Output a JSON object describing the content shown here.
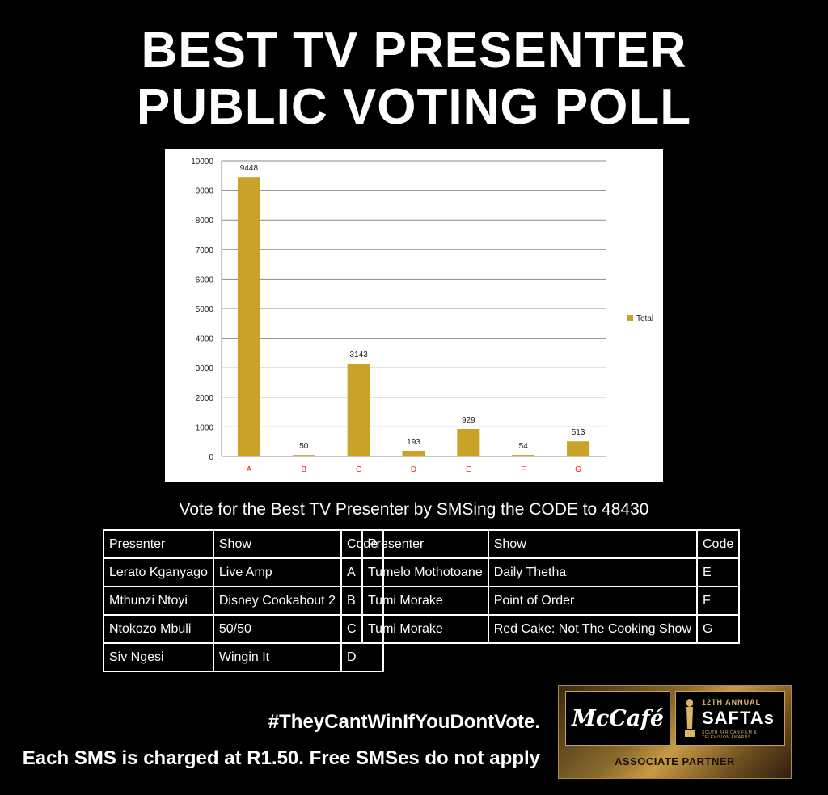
{
  "header": {
    "line1": "BEST TV PRESENTER",
    "line2": "PUBLIC VOTING POLL"
  },
  "chart_data": {
    "type": "bar",
    "categories": [
      "A",
      "B",
      "C",
      "D",
      "E",
      "F",
      "G"
    ],
    "series": [
      {
        "name": "Total",
        "values": [
          9448,
          50,
          3143,
          193,
          929,
          54,
          513
        ]
      }
    ],
    "ylim": [
      0,
      10000
    ],
    "yticks": [
      0,
      1000,
      2000,
      3000,
      4000,
      5000,
      6000,
      7000,
      8000,
      9000,
      10000
    ],
    "grid": true,
    "legend": "right",
    "colors": {
      "bar": "#C9A227",
      "tick_label": "#E8241C"
    }
  },
  "subtitle": "Vote for the Best TV Presenter by SMSing the CODE to 48430",
  "table_left": {
    "headers": [
      "Presenter",
      "Show",
      "Code"
    ],
    "rows": [
      [
        "Lerato Kganyago",
        "Live Amp",
        "A"
      ],
      [
        "Mthunzi Ntoyi",
        "Disney Cookabout 2",
        "B"
      ],
      [
        "Ntokozo Mbuli",
        "50/50",
        "C"
      ],
      [
        "Siv Ngesi",
        "Wingin It",
        "D"
      ]
    ]
  },
  "table_right": {
    "headers": [
      "Presenter",
      "Show",
      "Code"
    ],
    "rows": [
      [
        "Tumelo Mothotoane",
        "Daily Thetha",
        "E"
      ],
      [
        "Tumi Morake",
        "Point of Order",
        "F"
      ],
      [
        "Tumi Morake",
        "Red Cake: Not The Cooking Show",
        "G"
      ]
    ]
  },
  "footer": {
    "hashtag": "#TheyCantWinIfYouDontVote.",
    "note": "Each SMS is charged at R1.50. Free SMSes do not apply"
  },
  "sponsor": {
    "brand": "McCafé",
    "annual": "12TH ANNUAL",
    "awards": "SAFTAs",
    "awards_sub": "SOUTH AFRICAN FILM & TELEVISION AWARDS",
    "partner": "ASSOCIATE PARTNER"
  }
}
